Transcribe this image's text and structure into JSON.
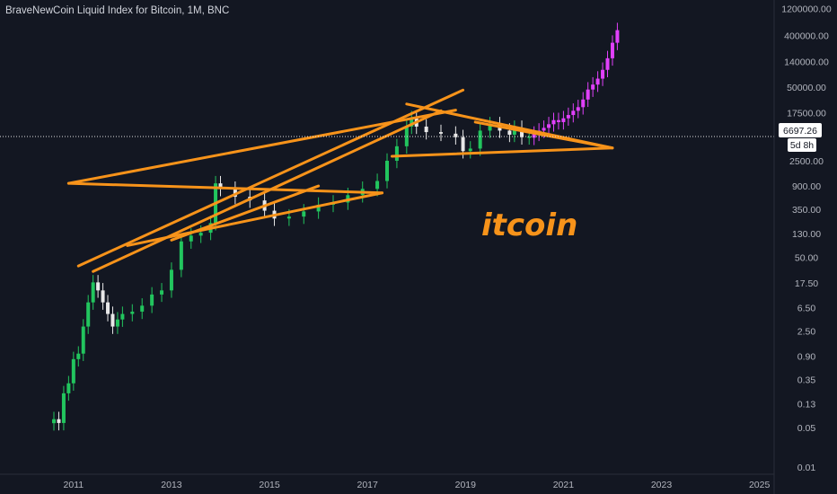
{
  "header": {
    "title": "BraveNewCoin Liquid Index for Bitcoin, 1M, BNC"
  },
  "price_label": "6697.26",
  "countdown": "5d 8h",
  "annotation": "itcoin",
  "colors": {
    "background": "#131722",
    "up": "#22c55e",
    "down": "#e8e8e8",
    "projection": "#e040fb",
    "trendline": "#f7931a",
    "axis_text": "#b2b5be",
    "last_price_line": "#e0e0e0"
  },
  "chart_data": {
    "type": "candlestick",
    "title": "BraveNewCoin Liquid Index for Bitcoin, 1M, BNC",
    "y_scale": "log",
    "ylim": [
      0.0075,
      1700000
    ],
    "yticks": [
      0.01,
      0.05,
      0.13,
      0.35,
      0.9,
      2.5,
      6.5,
      17.5,
      50,
      130,
      350,
      900,
      2500,
      6697.26,
      17500,
      50000,
      140000,
      400000,
      1200000
    ],
    "ytick_labels": [
      "0.01",
      "0.05",
      "0.13",
      "0.35",
      "0.90",
      "2.50",
      "6.50",
      "17.50",
      "50.00",
      "130.00",
      "350.00",
      "900.00",
      "2500.00",
      "6697.26",
      "17500.00",
      "50000.00",
      "140000.00",
      "400000.00",
      "1200000.00"
    ],
    "xlim": [
      2009.5,
      2025.3
    ],
    "xticks": [
      2011,
      2013,
      2015,
      2017,
      2019,
      2021,
      2023,
      2025
    ],
    "xtick_labels": [
      "2011",
      "2013",
      "2015",
      "2017",
      "2019",
      "2021",
      "2023",
      "2025"
    ],
    "last_price": 6697.26,
    "series": [
      {
        "kind": "historical",
        "x": [
          2010.6,
          2010.7,
          2010.8,
          2010.9,
          2011.0,
          2011.1,
          2011.2,
          2011.3,
          2011.4,
          2011.5,
          2011.6,
          2011.7,
          2011.8,
          2011.9,
          2012.0,
          2012.2,
          2012.4,
          2012.6,
          2012.8,
          2013.0,
          2013.2,
          2013.4,
          2013.6,
          2013.8,
          2013.9,
          2014.0,
          2014.3,
          2014.6,
          2014.9,
          2015.1,
          2015.4,
          2015.7,
          2016.0,
          2016.3,
          2016.6,
          2016.9,
          2017.2,
          2017.4,
          2017.6,
          2017.8,
          2017.9,
          2018.0,
          2018.2,
          2018.5,
          2018.8,
          2018.95,
          2019.1,
          2019.3,
          2019.5,
          2019.7,
          2019.9,
          2020.0,
          2020.15,
          2020.3
        ],
        "close": [
          0.07,
          0.06,
          0.2,
          0.3,
          0.8,
          1.0,
          3.0,
          8.0,
          18.0,
          13.0,
          8.0,
          5.0,
          3.0,
          4.0,
          5.0,
          5.5,
          7.0,
          11.0,
          13.0,
          30.0,
          95.0,
          120.0,
          135.0,
          200.0,
          1000.0,
          800.0,
          580.0,
          500.0,
          330.0,
          240.0,
          260.0,
          320.0,
          420.0,
          460.0,
          620.0,
          800.0,
          1100.0,
          2500.0,
          4500.0,
          10000.0,
          14000.0,
          10000.0,
          8000.0,
          7500.0,
          6500.0,
          3700.0,
          4100.0,
          8500.0,
          11000.0,
          8500.0,
          7200.0,
          9500.0,
          6500.0,
          6697.26
        ]
      },
      {
        "kind": "projection",
        "x": [
          2020.4,
          2020.5,
          2020.6,
          2020.7,
          2020.8,
          2020.9,
          2021.0,
          2021.1,
          2021.2,
          2021.3,
          2021.4,
          2021.5,
          2021.6,
          2021.7,
          2021.8,
          2021.9,
          2022.0,
          2022.1
        ],
        "close": [
          7500.0,
          8500.0,
          9500.0,
          11000.0,
          13000.0,
          12000.0,
          14000.0,
          16000.0,
          19000.0,
          22000.0,
          30000.0,
          45000.0,
          55000.0,
          70000.0,
          100000.0,
          160000.0,
          300000.0,
          500000.0
        ]
      }
    ],
    "trendlines": [
      {
        "x1": 2011.1,
        "y1": 35.0,
        "x2": 2018.95,
        "y2": 44000.0
      },
      {
        "x1": 2011.4,
        "y1": 28.0,
        "x2": 2018.5,
        "y2": 19000.0
      },
      {
        "x1": 2010.9,
        "y1": 1000.0,
        "x2": 2017.3,
        "y2": 680.0
      },
      {
        "x1": 2010.9,
        "y1": 1000.0,
        "x2": 2018.8,
        "y2": 19500.0
      },
      {
        "x1": 2012.1,
        "y1": 80.0,
        "x2": 2017.3,
        "y2": 680.0
      },
      {
        "x1": 2013.0,
        "y1": 100.0,
        "x2": 2016.0,
        "y2": 900.0
      },
      {
        "x1": 2017.8,
        "y1": 25000.0,
        "x2": 2022.0,
        "y2": 4200.0
      },
      {
        "x1": 2017.5,
        "y1": 3000.0,
        "x2": 2022.0,
        "y2": 4200.0
      },
      {
        "x1": 2019.2,
        "y1": 12000.0,
        "x2": 2022.0,
        "y2": 4200.0
      }
    ]
  }
}
